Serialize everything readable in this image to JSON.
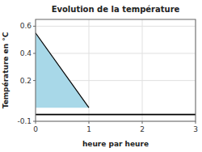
{
  "chart_data": {
    "type": "line",
    "title": "Evolution de la température",
    "xlabel": "heure par heure",
    "ylabel": "Température en °C",
    "x": [
      0,
      1
    ],
    "series": [
      {
        "type": "area",
        "color": "#a8d8e8",
        "values": [
          0.55,
          0.0
        ]
      },
      {
        "type": "line",
        "color": "#000000",
        "values": [
          0.55,
          0.0
        ]
      }
    ],
    "baseline": -0.05,
    "xlim": [
      0,
      3
    ],
    "ylim": [
      -0.1,
      0.65
    ],
    "xticks": [
      0,
      1,
      2,
      3
    ],
    "yticks": [
      -0.1,
      0.2,
      0.4,
      0.6
    ],
    "grid": true
  }
}
